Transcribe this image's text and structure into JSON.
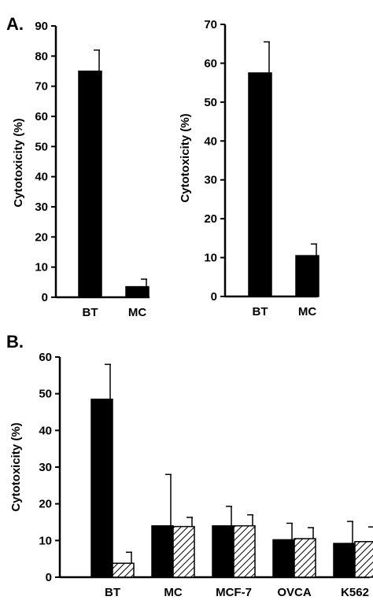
{
  "panels": {
    "a_label": "A.",
    "b_label": "B."
  },
  "chart_data": [
    {
      "type": "bar",
      "panel": "A.",
      "ylabel": "Cytotoxicity (%)",
      "ylim": [
        0,
        90
      ],
      "yticks": [
        0,
        10,
        20,
        30,
        40,
        50,
        60,
        70,
        80,
        90
      ],
      "categories": [
        "BT",
        "MC"
      ],
      "series": [
        {
          "values": [
            75,
            3.5
          ],
          "errors": [
            7,
            2.5
          ],
          "color": "#000000",
          "pattern": "solid"
        }
      ]
    },
    {
      "type": "bar",
      "panel": "A.",
      "ylabel": "Cytotoxicity (%)",
      "ylim": [
        0,
        70
      ],
      "yticks": [
        0,
        10,
        20,
        30,
        40,
        50,
        60,
        70
      ],
      "categories": [
        "BT",
        "MC"
      ],
      "series": [
        {
          "values": [
            57.5,
            10.5
          ],
          "errors": [
            8,
            3
          ],
          "color": "#000000",
          "pattern": "solid"
        }
      ]
    },
    {
      "type": "bar",
      "panel": "B.",
      "ylabel": "Cytotoxicity (%)",
      "ylim": [
        0,
        60
      ],
      "yticks": [
        0,
        10,
        20,
        30,
        40,
        50,
        60
      ],
      "categories": [
        "BT",
        "MC",
        "MCF-7",
        "OVCA",
        "K562"
      ],
      "series": [
        {
          "values": [
            48.5,
            14,
            14,
            10.2,
            9.2
          ],
          "errors": [
            9.5,
            14,
            5.3,
            4.5,
            6
          ],
          "color": "#000000",
          "pattern": "solid"
        },
        {
          "values": [
            3.8,
            13.8,
            14,
            10.5,
            9.7
          ],
          "errors": [
            3,
            2.5,
            3,
            3,
            4
          ],
          "color": "#000000",
          "pattern": "hatched"
        }
      ]
    }
  ]
}
